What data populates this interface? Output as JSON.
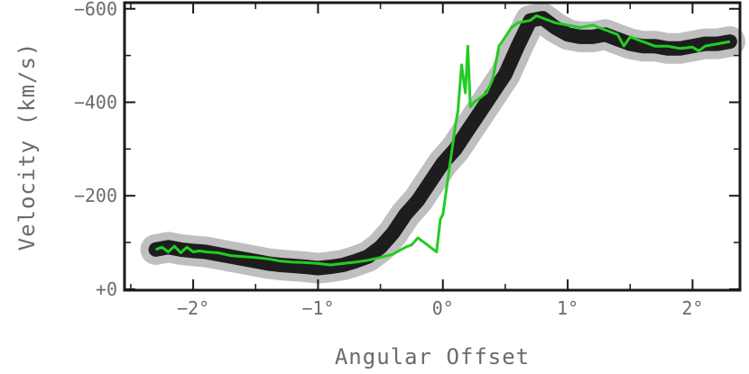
{
  "chart_data": {
    "type": "scatter",
    "title": "",
    "xlabel": "Angular Offset",
    "ylabel": "Velocity (km/s)",
    "xlim": [
      2.55,
      -2.38
    ],
    "ylim": [
      2,
      -613
    ],
    "x_ticks": [
      {
        "value": 2,
        "label": "−2°"
      },
      {
        "value": 1,
        "label": "−1°"
      },
      {
        "value": 0,
        "label": "0°"
      },
      {
        "value": -1,
        "label": "1°"
      },
      {
        "value": -2,
        "label": "2°"
      }
    ],
    "y_ticks": [
      {
        "value": -600,
        "label": "−600"
      },
      {
        "value": -400,
        "label": "−400"
      },
      {
        "value": -200,
        "label": "−200"
      },
      {
        "value": 0,
        "label": "+0"
      }
    ],
    "grid": false,
    "colors": {
      "greyscale_emission": "#000000",
      "trace": "#22cc22",
      "frame": "#1a1a1a",
      "text": "#6b6b6b"
    },
    "series": [
      {
        "style": "greyscale-emission",
        "x": [
          2.3,
          2.2,
          2.1,
          2.0,
          1.9,
          1.8,
          1.7,
          1.6,
          1.5,
          1.4,
          1.3,
          1.2,
          1.1,
          1.0,
          0.9,
          0.8,
          0.7,
          0.6,
          0.5,
          0.4,
          0.3,
          0.2,
          0.1,
          0.0,
          -0.1,
          -0.2,
          -0.3,
          -0.4,
          -0.5,
          -0.6,
          -0.7,
          -0.8,
          -0.9,
          -1.0,
          -1.1,
          -1.2,
          -1.3,
          -1.4,
          -1.5,
          -1.6,
          -1.7,
          -1.8,
          -1.9,
          -2.0,
          -2.1,
          -2.2,
          -2.3
        ],
        "y": [
          -85,
          -90,
          -85,
          -82,
          -80,
          -75,
          -70,
          -65,
          -60,
          -55,
          -52,
          -50,
          -48,
          -45,
          -48,
          -52,
          -60,
          -70,
          -90,
          -120,
          -160,
          -190,
          -230,
          -270,
          -300,
          -340,
          -380,
          -420,
          -460,
          -520,
          -575,
          -580,
          -560,
          -545,
          -540,
          -540,
          -545,
          -535,
          -525,
          -520,
          -520,
          -515,
          -515,
          -520,
          -525,
          -525,
          -530
        ]
      },
      {
        "style": "trace",
        "x": [
          2.3,
          2.25,
          2.2,
          2.15,
          2.1,
          2.05,
          2.0,
          1.95,
          1.9,
          1.8,
          1.7,
          1.6,
          1.5,
          1.4,
          1.3,
          1.2,
          1.1,
          1.0,
          0.9,
          0.8,
          0.7,
          0.6,
          0.5,
          0.4,
          0.3,
          0.25,
          0.2,
          0.15,
          0.1,
          0.05,
          0.02,
          0.0,
          -0.1,
          -0.12,
          -0.15,
          -0.18,
          -0.2,
          -0.22,
          -0.25,
          -0.3,
          -0.35,
          -0.4,
          -0.45,
          -0.5,
          -0.55,
          -0.6,
          -0.7,
          -0.75,
          -0.8,
          -0.85,
          -0.9,
          -1.0,
          -1.1,
          -1.2,
          -1.3,
          -1.4,
          -1.45,
          -1.5,
          -1.6,
          -1.7,
          -1.8,
          -1.9,
          -2.0,
          -2.05,
          -2.1,
          -2.2,
          -2.3
        ],
        "y": [
          -85,
          -90,
          -80,
          -92,
          -78,
          -90,
          -80,
          -82,
          -80,
          -78,
          -72,
          -70,
          -68,
          -65,
          -60,
          -58,
          -57,
          -55,
          -52,
          -55,
          -58,
          -62,
          -68,
          -75,
          -90,
          -95,
          -110,
          -100,
          -90,
          -80,
          -150,
          -160,
          -350,
          -380,
          -480,
          -420,
          -520,
          -390,
          -400,
          -410,
          -420,
          -450,
          -520,
          -540,
          -560,
          -570,
          -575,
          -585,
          -580,
          -575,
          -570,
          -565,
          -560,
          -565,
          -555,
          -545,
          -520,
          -540,
          -530,
          -520,
          -520,
          -515,
          -518,
          -510,
          -520,
          -525,
          -530
        ]
      }
    ]
  }
}
